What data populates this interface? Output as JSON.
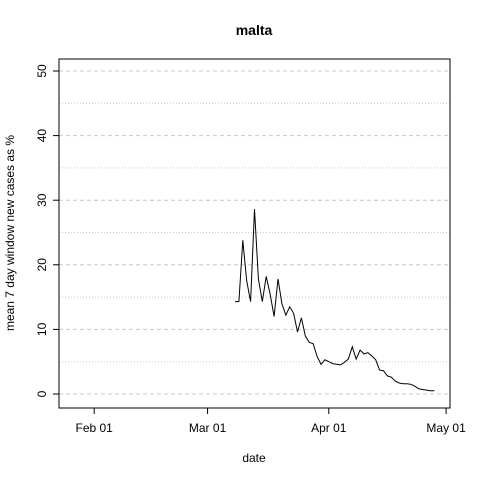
{
  "chart_data": {
    "type": "line",
    "title": "malta",
    "xlabel": "date",
    "ylabel": "mean  7  day window new cases as %",
    "ylim": [
      0,
      50
    ],
    "yticks": [
      0,
      10,
      20,
      30,
      40,
      50
    ],
    "xlim": [
      "2020-01-23",
      "2020-05-02"
    ],
    "xticks": [
      {
        "date": "2020-02-01",
        "label": "Feb 01"
      },
      {
        "date": "2020-03-01",
        "label": "Mar 01"
      },
      {
        "date": "2020-04-01",
        "label": "Apr 01"
      },
      {
        "date": "2020-05-01",
        "label": "May 01"
      }
    ],
    "grid": true,
    "series": [
      {
        "points": [
          [
            "2020-03-08",
            14.3
          ],
          [
            "2020-03-09",
            14.3
          ],
          [
            "2020-03-10",
            23.8
          ],
          [
            "2020-03-11",
            17.5
          ],
          [
            "2020-03-12",
            14.3
          ],
          [
            "2020-03-13",
            28.6
          ],
          [
            "2020-03-14",
            17.8
          ],
          [
            "2020-03-15",
            14.3
          ],
          [
            "2020-03-16",
            18.2
          ],
          [
            "2020-03-17",
            15.5
          ],
          [
            "2020-03-18",
            12.0
          ],
          [
            "2020-03-19",
            17.8
          ],
          [
            "2020-03-20",
            14.0
          ],
          [
            "2020-03-21",
            12.2
          ],
          [
            "2020-03-22",
            13.5
          ],
          [
            "2020-03-23",
            12.5
          ],
          [
            "2020-03-24",
            9.6
          ],
          [
            "2020-03-25",
            11.8
          ],
          [
            "2020-03-26",
            9.0
          ],
          [
            "2020-03-27",
            8.0
          ],
          [
            "2020-03-28",
            7.8
          ],
          [
            "2020-03-29",
            5.8
          ],
          [
            "2020-03-30",
            4.6
          ],
          [
            "2020-03-31",
            5.3
          ],
          [
            "2020-04-01",
            5.0
          ],
          [
            "2020-04-02",
            4.7
          ],
          [
            "2020-04-03",
            4.6
          ],
          [
            "2020-04-04",
            4.5
          ],
          [
            "2020-04-05",
            4.9
          ],
          [
            "2020-04-06",
            5.4
          ],
          [
            "2020-04-07",
            7.3
          ],
          [
            "2020-04-08",
            5.4
          ],
          [
            "2020-04-09",
            6.8
          ],
          [
            "2020-04-10",
            6.2
          ],
          [
            "2020-04-11",
            6.4
          ],
          [
            "2020-04-12",
            5.9
          ],
          [
            "2020-04-13",
            5.3
          ],
          [
            "2020-04-14",
            3.7
          ],
          [
            "2020-04-15",
            3.6
          ],
          [
            "2020-04-16",
            2.8
          ],
          [
            "2020-04-17",
            2.6
          ],
          [
            "2020-04-18",
            2.0
          ],
          [
            "2020-04-19",
            1.7
          ],
          [
            "2020-04-20",
            1.6
          ],
          [
            "2020-04-21",
            1.6
          ],
          [
            "2020-04-22",
            1.5
          ],
          [
            "2020-04-23",
            1.2
          ],
          [
            "2020-04-24",
            0.8
          ],
          [
            "2020-04-25",
            0.7
          ],
          [
            "2020-04-26",
            0.6
          ],
          [
            "2020-04-27",
            0.5
          ],
          [
            "2020-04-28",
            0.5
          ]
        ]
      }
    ]
  }
}
